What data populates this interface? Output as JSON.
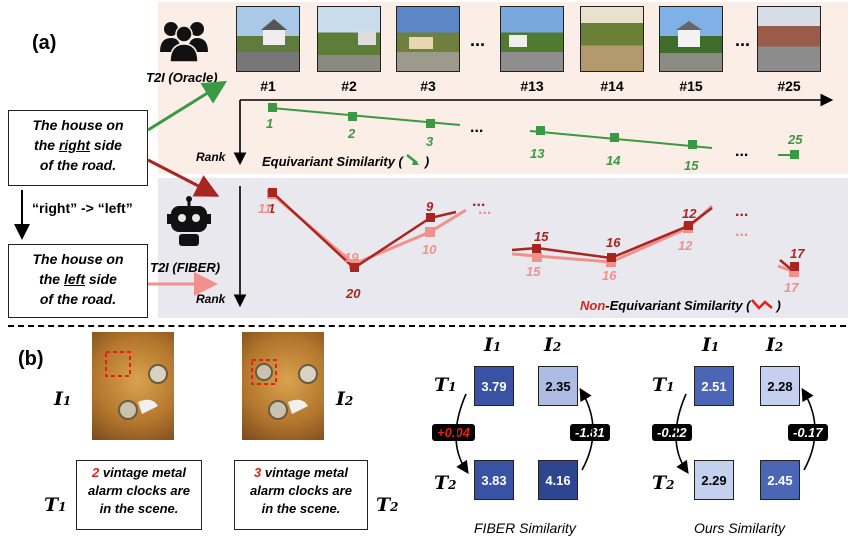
{
  "part_a": {
    "label": "(a)",
    "oracle_caption": "T2I (Oracle)",
    "fiber_caption": "T2I (FIBER)",
    "text_right": {
      "line1": "The house on",
      "pre": "the ",
      "word": "right",
      "post": " side",
      "line3": "of the road."
    },
    "text_left": {
      "line1": "The house on",
      "pre": "the ",
      "word": "left",
      "post": " side",
      "line3": "of the road."
    },
    "swap_label": "“right” -> “left”",
    "thumbnails": [
      "#1",
      "#2",
      "#3",
      "#13",
      "#14",
      "#15",
      "#25"
    ],
    "ellipsis": "...",
    "rank_label": "Rank",
    "equivariant_label": "Equivariant Similarity (",
    "equivariant_close": ")",
    "non_prefix": "Non",
    "non_rest": "-Equivariant Similarity (",
    "non_close": ")",
    "oracle_ranks": [
      "1",
      "2",
      "3",
      "13",
      "14",
      "15",
      "25"
    ],
    "fiber_dark_ranks": [
      "1",
      "20",
      "9",
      "15",
      "16",
      "12",
      "17"
    ],
    "fiber_light_ranks": [
      "11",
      "19",
      "10",
      "15",
      "16",
      "12",
      "17"
    ]
  },
  "part_b": {
    "label": "(b)",
    "i1": "I",
    "i1_sub": "1",
    "i2": "I",
    "i2_sub": "2",
    "t1": "T",
    "t1_sub": "1",
    "t2": "T",
    "t2_sub": "2",
    "caption1": {
      "num": "2",
      "rest1": " vintage metal",
      "line2": "alarm clocks are",
      "line3": "in the scene."
    },
    "caption2": {
      "num": "3",
      "rest1": " vintage metal",
      "line2": "alarm clocks are",
      "line3": "in the scene."
    },
    "fiber": {
      "title": "FIBER Similarity",
      "cells": [
        "3.79",
        "2.35",
        "3.83",
        "4.16"
      ],
      "left_delta": "+0.04",
      "right_delta": "-1.81"
    },
    "ours": {
      "title": "Ours Similarity",
      "cells": [
        "2.51",
        "2.28",
        "2.29",
        "2.45"
      ],
      "left_delta": "-0.22",
      "right_delta": "-0.17"
    },
    "colors": {
      "dark_blue": "#3a52a4",
      "mid_blue": "#4c66b6",
      "light_blue": "#aebce4",
      "pale_blue": "#c5d0ee",
      "red": "#e0231c"
    }
  }
}
